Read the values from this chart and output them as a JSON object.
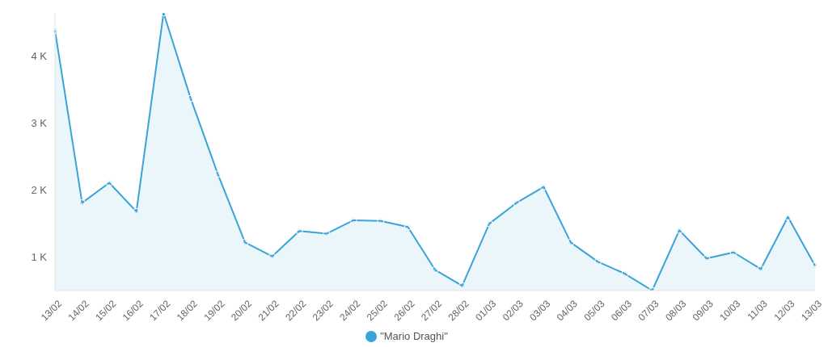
{
  "chart_data": {
    "type": "area",
    "categories": [
      "13/02",
      "14/02",
      "15/02",
      "16/02",
      "17/02",
      "18/02",
      "19/02",
      "20/02",
      "21/02",
      "22/02",
      "23/02",
      "24/02",
      "25/02",
      "26/02",
      "27/02",
      "28/02",
      "01/03",
      "02/03",
      "03/03",
      "04/03",
      "05/03",
      "06/03",
      "07/03",
      "08/03",
      "09/03",
      "10/03",
      "11/03",
      "12/03",
      "13/03"
    ],
    "series": [
      {
        "name": "\"Mario Draghi\"",
        "color": "#3aa3d7",
        "values": [
          4390,
          1810,
          2110,
          1680,
          4650,
          3370,
          2240,
          1220,
          1010,
          1390,
          1350,
          1550,
          1540,
          1450,
          810,
          570,
          1500,
          1810,
          2050,
          1220,
          930,
          750,
          500,
          1400,
          980,
          1070,
          820,
          1600,
          870
        ]
      }
    ],
    "ylim": [
      500,
      4650
    ],
    "yticks": [
      {
        "value": 1000,
        "label": "1 K"
      },
      {
        "value": 2000,
        "label": "2 K"
      },
      {
        "value": 3000,
        "label": "3 K"
      },
      {
        "value": 4000,
        "label": "4 K"
      }
    ],
    "legend": "bottom",
    "marker": "circle"
  }
}
